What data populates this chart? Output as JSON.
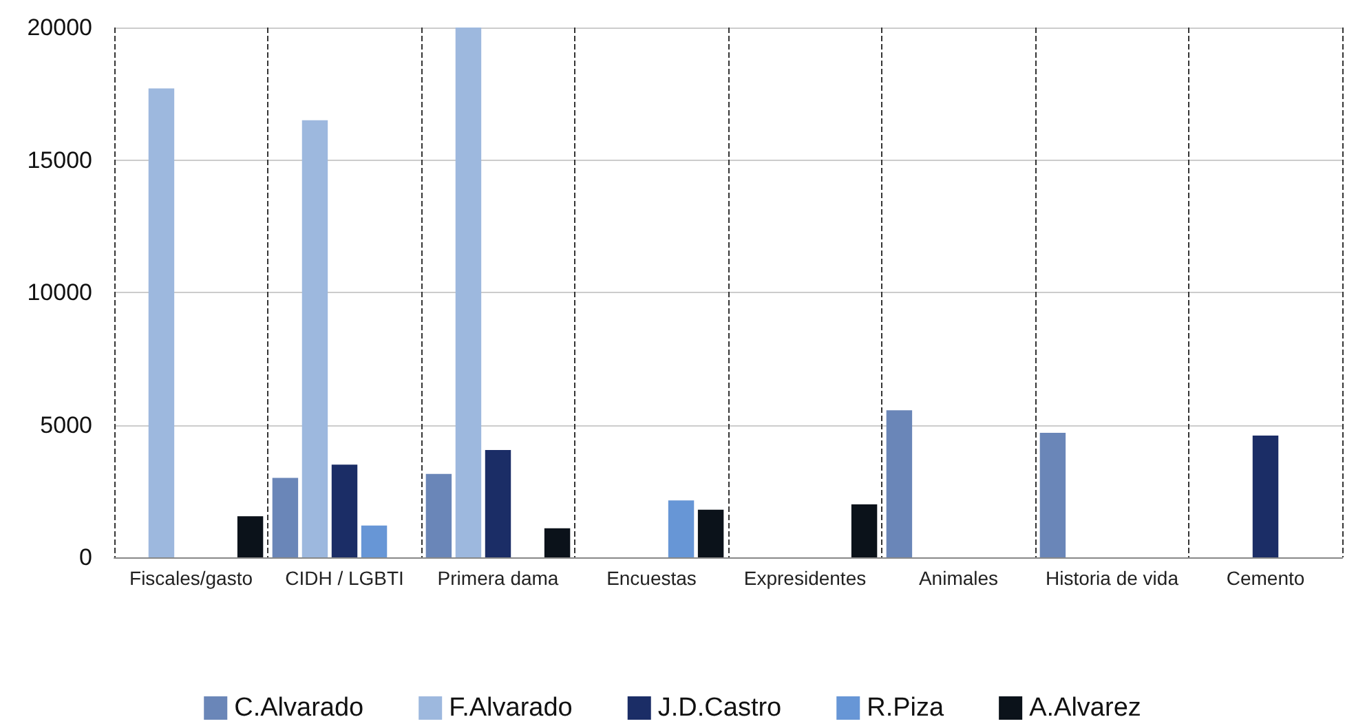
{
  "chart_data": {
    "type": "bar",
    "categories": [
      "Fiscales/gasto",
      "CIDH / LGBTI",
      "Primera dama",
      "Encuestas",
      "Expresidentes",
      "Animales",
      "Historia de vida",
      "Cemento"
    ],
    "series": [
      {
        "name": "C.Alvarado",
        "color": "#6a86b8",
        "values": [
          null,
          3000,
          3150,
          null,
          null,
          5550,
          4700,
          null
        ]
      },
      {
        "name": "F.Alvarado",
        "color": "#9db8de",
        "values": [
          17700,
          16500,
          20000,
          null,
          null,
          null,
          null,
          null
        ]
      },
      {
        "name": "J.D.Castro",
        "color": "#1b2d66",
        "values": [
          null,
          3500,
          4050,
          null,
          null,
          null,
          null,
          4600
        ]
      },
      {
        "name": "R.Piza",
        "color": "#6796d6",
        "values": [
          null,
          1200,
          null,
          2150,
          null,
          null,
          null,
          null
        ]
      },
      {
        "name": "A.Alvarez",
        "color": "#0b121a",
        "values": [
          1550,
          null,
          1100,
          1800,
          2000,
          null,
          null,
          null
        ]
      }
    ],
    "ylim": [
      0,
      20000
    ],
    "yticks": [
      0,
      5000,
      10000,
      15000,
      20000
    ],
    "grid": true,
    "legend": "bottom"
  }
}
